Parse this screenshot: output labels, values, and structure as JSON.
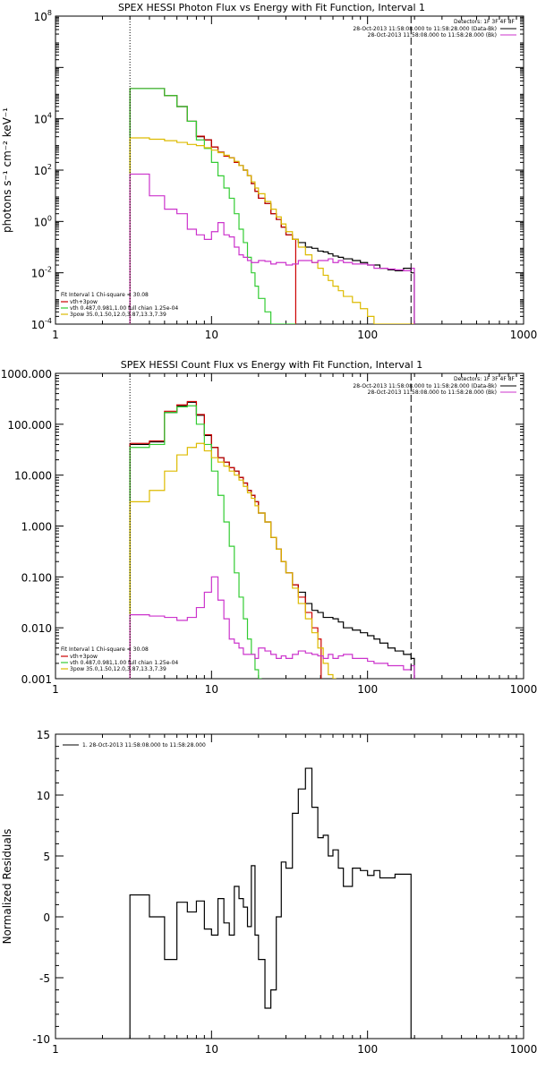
{
  "chart_data": [
    {
      "type": "line",
      "title": "SPEX HESSI Photon Flux vs Energy with Fit Function, Interval 1",
      "xlabel": "",
      "ylabel": "photons s⁻¹ cm⁻² keV⁻¹",
      "xscale": "log",
      "yscale": "log",
      "xlim": [
        1,
        1000
      ],
      "ylim": [
        0.0001,
        100000000
      ],
      "x_ticks": [
        "1",
        "10",
        "100",
        "1000"
      ],
      "y_ticks": [
        {
          "base": "10",
          "exp": "8"
        },
        {
          "base": "10",
          "exp": "4"
        },
        {
          "base": "10",
          "exp": "2"
        },
        {
          "base": "10",
          "exp": "0"
        },
        {
          "base": "10",
          "exp": "-2"
        },
        {
          "base": "10",
          "exp": "-4"
        }
      ],
      "detectors_label": "Detectors: 1F 3F 4F 8F",
      "legend_right": [
        {
          "text": "28-Oct-2013 11:58:08.000 to 11:58:28.000 (Data-Bk)",
          "color": "#000000"
        },
        {
          "text": "28-Oct-2013 11:58:08.000 to 11:58:28.000 (Bk)",
          "color": "#cc33cc"
        }
      ],
      "legend_left_header": "Fit Interval 1    Chi-square = 30.08",
      "legend_left": [
        {
          "text": "vth+3pow",
          "color": "#cc0000"
        },
        {
          "text": "vth 0.487,0.981,1.00  full chian 1.25e-04",
          "color": "#33cc33"
        },
        {
          "text": "3pow 35.0,1.50,12.0,3.87,13.3,7.39",
          "color": "#ddbb00"
        }
      ],
      "fit_range": [
        3,
        190
      ],
      "series": [
        {
          "color": "#000000",
          "x": [
            3,
            4,
            5,
            6,
            7,
            8,
            9,
            10,
            11,
            12,
            13,
            14,
            15,
            16,
            17,
            18,
            19,
            20,
            22,
            24,
            26,
            28,
            30,
            33,
            36,
            40,
            44,
            48,
            52,
            56,
            60,
            65,
            70,
            80,
            90,
            100,
            110,
            120,
            135,
            150,
            170,
            190
          ],
          "y": [
            150000,
            150000,
            80000,
            30000,
            8000,
            2000,
            1500,
            800,
            500,
            350,
            300,
            200,
            150,
            100,
            60,
            30,
            15,
            8,
            5,
            2,
            1.2,
            0.6,
            0.3,
            0.2,
            0.15,
            0.1,
            0.09,
            0.07,
            0.065,
            0.055,
            0.045,
            0.04,
            0.035,
            0.03,
            0.025,
            0.02,
            0.02,
            0.015,
            0.013,
            0.012,
            0.015,
            0.01
          ]
        },
        {
          "color": "#cc0000",
          "x": [
            3,
            4,
            5,
            6,
            7,
            8,
            9,
            10,
            11,
            12,
            13,
            14,
            15,
            16,
            17,
            18,
            19,
            20,
            22,
            24,
            26,
            28,
            30,
            33
          ],
          "y": [
            150000,
            150000,
            80000,
            30000,
            8000,
            2100,
            1500,
            800,
            500,
            350,
            300,
            200,
            150,
            100,
            60,
            30,
            15,
            8,
            5,
            2,
            1.2,
            0.6,
            0.3,
            0.2
          ]
        },
        {
          "color": "#33cc33",
          "x": [
            3,
            4,
            5,
            6,
            7,
            8,
            9,
            10,
            11,
            12,
            13,
            14,
            15,
            16,
            17,
            18,
            19,
            20,
            22,
            24,
            26,
            28,
            30,
            33
          ],
          "y": [
            150000,
            150000,
            80000,
            30000,
            8000,
            1500,
            700,
            200,
            60,
            20,
            8,
            2,
            0.5,
            0.15,
            0.04,
            0.01,
            0.003,
            0.001,
            0.0003,
            0.0001,
            0.0001,
            0.0001,
            0.0001,
            0.0001
          ]
        },
        {
          "color": "#ddbb00",
          "x": [
            3,
            4,
            5,
            6,
            7,
            8,
            9,
            10,
            11,
            12,
            13,
            14,
            15,
            16,
            17,
            18,
            19,
            20,
            22,
            24,
            26,
            28,
            30,
            33,
            36,
            40,
            44,
            48,
            52,
            56,
            60,
            65,
            70,
            80,
            90,
            100,
            110,
            120,
            135,
            150,
            170,
            190
          ],
          "y": [
            1800,
            1600,
            1400,
            1200,
            1000,
            900,
            750,
            600,
            480,
            380,
            300,
            220,
            150,
            100,
            60,
            35,
            20,
            12,
            6,
            3,
            1.5,
            0.8,
            0.4,
            0.2,
            0.1,
            0.05,
            0.025,
            0.015,
            0.008,
            0.005,
            0.003,
            0.002,
            0.0012,
            0.0007,
            0.0004,
            0.0002,
            0.0001,
            0.0001,
            0.0001,
            0.0001,
            0.0001,
            0.0001
          ]
        },
        {
          "color": "#cc33cc",
          "x": [
            3,
            4,
            5,
            6,
            7,
            8,
            9,
            10,
            11,
            12,
            13,
            14,
            15,
            16,
            17,
            18,
            19,
            20,
            22,
            24,
            26,
            28,
            30,
            33,
            36,
            40,
            44,
            48,
            52,
            56,
            60,
            65,
            70,
            80,
            90,
            100,
            110,
            120,
            135,
            150,
            170,
            190
          ],
          "y": [
            70,
            10,
            3,
            2,
            0.5,
            0.3,
            0.2,
            0.4,
            0.9,
            0.3,
            0.25,
            0.1,
            0.05,
            0.04,
            0.03,
            0.025,
            0.025,
            0.03,
            0.028,
            0.022,
            0.025,
            0.025,
            0.02,
            0.022,
            0.03,
            0.03,
            0.025,
            0.03,
            0.03,
            0.035,
            0.025,
            0.03,
            0.025,
            0.022,
            0.022,
            0.02,
            0.015,
            0.015,
            0.014,
            0.013,
            0.012,
            0.015
          ]
        }
      ]
    },
    {
      "type": "line",
      "title": "SPEX HESSI Count Flux vs Energy with Fit Function, Interval 1",
      "xlabel": "",
      "ylabel": "",
      "xscale": "log",
      "yscale": "log",
      "xlim": [
        1,
        1000
      ],
      "ylim": [
        0.001,
        1000
      ],
      "x_ticks": [
        "1",
        "10",
        "100",
        "1000"
      ],
      "y_ticks": [
        "1000.000",
        "100.000",
        "10.000",
        "1.000",
        "0.100",
        "0.010",
        "0.001"
      ],
      "detectors_label": "Detectors: 1F 3F 4F 8F",
      "legend_right": [
        {
          "text": "28-Oct-2013 11:58:08.000 to 11:58:28.000 (Data-Bk)",
          "color": "#000000"
        },
        {
          "text": "28-Oct-2013 11:58:08.000 to 11:58:28.000 (Bk)",
          "color": "#cc33cc"
        }
      ],
      "legend_left_header": "Fit Interval 1    Chi-square = 30.08",
      "legend_left": [
        {
          "text": "vth+3pow",
          "color": "#cc0000"
        },
        {
          "text": "vth 0.487,0.981,1.00  full chian 1.25e-04",
          "color": "#33cc33"
        },
        {
          "text": "3pow 35.0,1.50,12.0,3.87,13.3,7.39",
          "color": "#ddbb00"
        }
      ],
      "fit_range": [
        3,
        190
      ],
      "series": [
        {
          "color": "#000000",
          "x": [
            3,
            4,
            5,
            6,
            7,
            8,
            9,
            10,
            11,
            12,
            13,
            14,
            15,
            16,
            17,
            18,
            19,
            20,
            22,
            24,
            26,
            28,
            30,
            33,
            36,
            40,
            44,
            48,
            52,
            56,
            60,
            65,
            70,
            80,
            90,
            100,
            110,
            120,
            135,
            150,
            170,
            190
          ],
          "y": [
            40,
            45,
            170,
            230,
            270,
            150,
            60,
            35,
            22,
            18,
            14,
            12,
            9,
            7,
            5,
            4,
            3,
            1.8,
            1.2,
            0.6,
            0.35,
            0.2,
            0.12,
            0.07,
            0.05,
            0.03,
            0.022,
            0.02,
            0.016,
            0.016,
            0.015,
            0.013,
            0.01,
            0.009,
            0.008,
            0.007,
            0.006,
            0.005,
            0.004,
            0.0035,
            0.003,
            0.0025
          ]
        },
        {
          "color": "#cc0000",
          "x": [
            3,
            4,
            5,
            6,
            7,
            8,
            9,
            10,
            11,
            12,
            13,
            14,
            15,
            16,
            17,
            18,
            19,
            20,
            22,
            24,
            26,
            28,
            30,
            33,
            36,
            40,
            44,
            48
          ],
          "y": [
            42,
            47,
            180,
            240,
            280,
            155,
            62,
            35,
            22,
            18,
            14,
            12,
            9,
            7,
            5,
            4,
            3,
            1.8,
            1.2,
            0.6,
            0.35,
            0.2,
            0.12,
            0.07,
            0.04,
            0.02,
            0.01,
            0.006
          ]
        },
        {
          "color": "#33cc33",
          "x": [
            3,
            4,
            5,
            6,
            7,
            8,
            9,
            10,
            11,
            12,
            13,
            14,
            15,
            16,
            17,
            18,
            19,
            20
          ],
          "y": [
            35,
            40,
            170,
            220,
            230,
            100,
            40,
            12,
            4,
            1.2,
            0.4,
            0.12,
            0.04,
            0.015,
            0.006,
            0.003,
            0.0015,
            0.001
          ]
        },
        {
          "color": "#ddbb00",
          "x": [
            3,
            4,
            5,
            6,
            7,
            8,
            9,
            10,
            11,
            12,
            13,
            14,
            15,
            16,
            17,
            18,
            19,
            20,
            22,
            24,
            26,
            28,
            30,
            33,
            36,
            40,
            44,
            48,
            52,
            56,
            60
          ],
          "y": [
            3,
            5,
            12,
            25,
            35,
            42,
            30,
            22,
            18,
            15,
            12,
            10,
            8,
            6,
            4.5,
            3.5,
            2.5,
            1.8,
            1.2,
            0.6,
            0.35,
            0.2,
            0.12,
            0.06,
            0.03,
            0.015,
            0.008,
            0.004,
            0.002,
            0.0012,
            0.001
          ]
        },
        {
          "color": "#cc33cc",
          "x": [
            3,
            4,
            5,
            6,
            7,
            8,
            9,
            10,
            11,
            12,
            13,
            14,
            15,
            16,
            17,
            18,
            19,
            20,
            22,
            24,
            26,
            28,
            30,
            33,
            36,
            40,
            44,
            48,
            52,
            56,
            60,
            65,
            70,
            80,
            90,
            100,
            110,
            120,
            135,
            150,
            170,
            190
          ],
          "y": [
            0.018,
            0.017,
            0.016,
            0.014,
            0.016,
            0.025,
            0.05,
            0.1,
            0.035,
            0.015,
            0.006,
            0.005,
            0.004,
            0.003,
            0.003,
            0.003,
            0.0025,
            0.004,
            0.0035,
            0.003,
            0.0025,
            0.0028,
            0.0025,
            0.003,
            0.0035,
            0.0032,
            0.003,
            0.0028,
            0.0025,
            0.003,
            0.0025,
            0.0028,
            0.003,
            0.0025,
            0.0025,
            0.0022,
            0.002,
            0.002,
            0.0018,
            0.0018,
            0.0015,
            0.0018
          ]
        }
      ]
    },
    {
      "type": "line",
      "title": "",
      "xlabel": "",
      "ylabel": "Normalized Residuals",
      "xscale": "log",
      "yscale": "linear",
      "xlim": [
        1,
        1000
      ],
      "ylim": [
        -10,
        15
      ],
      "x_ticks": [
        "1",
        "10",
        "100",
        "1000"
      ],
      "y_ticks": [
        "15",
        "10",
        "5",
        "0",
        "-5",
        "-10"
      ],
      "legend": "1. 28-Oct-2013 11:58:08.000 to 11:58:28.000",
      "series": [
        {
          "color": "#000000",
          "x": [
            3,
            4,
            5,
            6,
            7,
            8,
            9,
            10,
            11,
            12,
            13,
            14,
            15,
            16,
            17,
            18,
            19,
            20,
            22,
            24,
            26,
            28,
            30,
            33,
            36,
            40,
            44,
            48,
            52,
            56,
            60,
            65,
            70,
            80,
            90,
            100,
            110,
            120,
            135,
            150,
            170,
            190
          ],
          "y": [
            1.8,
            0,
            -3.5,
            1.2,
            0.4,
            1.3,
            -1,
            -1.5,
            1.5,
            -0.5,
            -1.5,
            2.5,
            1.5,
            0.8,
            -0.8,
            4.2,
            -1.5,
            -3.5,
            -7.5,
            -6,
            0,
            4.5,
            4,
            8.5,
            10.5,
            12.2,
            9,
            6.5,
            6.7,
            5,
            5.5,
            4,
            2.5,
            4,
            3.8,
            3.4,
            3.8,
            3.2,
            3.2,
            3.5,
            3.5,
            -10
          ]
        }
      ]
    }
  ]
}
